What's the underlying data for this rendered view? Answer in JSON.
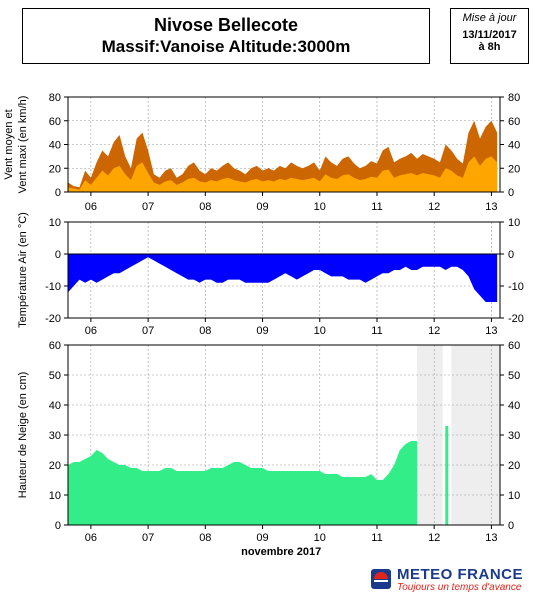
{
  "header": {
    "station": "Nivose Bellecote",
    "massif_line": "Massif:Vanoise Altitude:3000m",
    "update_label": "Mise à jour",
    "update_date": "13/11/2017",
    "update_time": "à 8h"
  },
  "footer": {
    "brand": "METEO FRANCE",
    "tagline": "Toujours un temps d'avance"
  },
  "chart_data": [
    {
      "type": "area",
      "name": "wind",
      "ylabel_lines": [
        "Vent moyen et",
        "Vent maxi (en km/h)"
      ],
      "ylim": [
        0,
        80
      ],
      "yticks": [
        0,
        20,
        40,
        60,
        80
      ],
      "xlim": [
        5.6,
        13.15
      ],
      "xticks": [
        6,
        7,
        8,
        9,
        10,
        11,
        12,
        13
      ],
      "xtick_labels": [
        "06",
        "07",
        "08",
        "09",
        "10",
        "11",
        "12",
        "13"
      ],
      "grid": true,
      "colors": {
        "max": "#cc6600",
        "mean": "#ffa500"
      },
      "x": [
        5.6,
        5.7,
        5.8,
        5.9,
        6.0,
        6.1,
        6.2,
        6.3,
        6.4,
        6.5,
        6.6,
        6.7,
        6.8,
        6.9,
        7.0,
        7.1,
        7.2,
        7.3,
        7.4,
        7.5,
        7.6,
        7.7,
        7.8,
        7.9,
        8.0,
        8.1,
        8.2,
        8.3,
        8.4,
        8.5,
        8.6,
        8.7,
        8.8,
        8.9,
        9.0,
        9.1,
        9.2,
        9.3,
        9.4,
        9.5,
        9.6,
        9.7,
        9.8,
        9.9,
        10.0,
        10.1,
        10.2,
        10.3,
        10.4,
        10.5,
        10.6,
        10.7,
        10.8,
        10.9,
        11.0,
        11.1,
        11.2,
        11.3,
        11.4,
        11.5,
        11.6,
        11.7,
        11.8,
        11.9,
        12.0,
        12.1,
        12.2,
        12.3,
        12.4,
        12.5,
        12.6,
        12.7,
        12.8,
        12.9,
        13.0,
        13.1
      ],
      "series": [
        {
          "name": "max",
          "values": [
            8,
            5,
            4,
            18,
            12,
            25,
            35,
            30,
            42,
            48,
            30,
            20,
            45,
            50,
            35,
            15,
            12,
            18,
            20,
            12,
            15,
            22,
            25,
            18,
            15,
            20,
            18,
            22,
            25,
            20,
            18,
            15,
            20,
            22,
            18,
            20,
            18,
            22,
            20,
            25,
            22,
            20,
            22,
            25,
            18,
            30,
            25,
            22,
            28,
            30,
            24,
            20,
            22,
            26,
            24,
            35,
            38,
            25,
            28,
            30,
            33,
            28,
            32,
            30,
            28,
            25,
            40,
            35,
            28,
            24,
            50,
            60,
            45,
            55,
            60,
            50
          ]
        },
        {
          "name": "mean",
          "values": [
            4,
            3,
            2,
            10,
            6,
            12,
            18,
            14,
            20,
            22,
            15,
            10,
            22,
            25,
            16,
            8,
            6,
            9,
            10,
            6,
            8,
            11,
            12,
            9,
            8,
            10,
            9,
            11,
            12,
            10,
            9,
            8,
            10,
            11,
            9,
            10,
            9,
            11,
            10,
            12,
            11,
            10,
            11,
            12,
            9,
            15,
            12,
            11,
            14,
            15,
            12,
            10,
            11,
            13,
            12,
            18,
            19,
            12,
            14,
            15,
            16,
            14,
            16,
            15,
            14,
            12,
            20,
            18,
            14,
            12,
            25,
            30,
            22,
            28,
            30,
            25
          ]
        }
      ]
    },
    {
      "type": "area",
      "name": "temperature",
      "ylabel": "Température Air (en °C)",
      "ylim": [
        -20,
        10
      ],
      "yticks": [
        -20,
        -10,
        0,
        10
      ],
      "xlim": [
        5.6,
        13.15
      ],
      "xticks": [
        6,
        7,
        8,
        9,
        10,
        11,
        12,
        13
      ],
      "xtick_labels": [
        "06",
        "07",
        "08",
        "09",
        "10",
        "11",
        "12",
        "13"
      ],
      "grid": true,
      "color": "#0000ff",
      "x": [
        5.6,
        5.7,
        5.8,
        5.9,
        6.0,
        6.1,
        6.2,
        6.3,
        6.4,
        6.5,
        6.6,
        6.7,
        6.8,
        6.9,
        7.0,
        7.1,
        7.2,
        7.3,
        7.4,
        7.5,
        7.6,
        7.7,
        7.8,
        7.9,
        8.0,
        8.1,
        8.2,
        8.3,
        8.4,
        8.5,
        8.6,
        8.7,
        8.8,
        8.9,
        9.0,
        9.1,
        9.2,
        9.3,
        9.4,
        9.5,
        9.6,
        9.7,
        9.8,
        9.9,
        10.0,
        10.1,
        10.2,
        10.3,
        10.4,
        10.5,
        10.6,
        10.7,
        10.8,
        10.9,
        11.0,
        11.1,
        11.2,
        11.3,
        11.4,
        11.5,
        11.6,
        11.7,
        11.8,
        11.9,
        12.0,
        12.1,
        12.2,
        12.3,
        12.4,
        12.5,
        12.6,
        12.7,
        12.8,
        12.9,
        13.0,
        13.1
      ],
      "values": [
        -12,
        -10,
        -8,
        -9,
        -8,
        -9,
        -8,
        -7,
        -6,
        -6,
        -5,
        -4,
        -3,
        -2,
        -1,
        -2,
        -3,
        -4,
        -5,
        -6,
        -7,
        -8,
        -8,
        -9,
        -8,
        -8,
        -9,
        -9,
        -8,
        -8,
        -8,
        -9,
        -9,
        -9,
        -9,
        -9,
        -8,
        -7,
        -6,
        -7,
        -8,
        -7,
        -6,
        -5,
        -5,
        -6,
        -7,
        -7,
        -7,
        -8,
        -8,
        -8,
        -9,
        -8,
        -7,
        -6,
        -6,
        -5,
        -5,
        -4,
        -5,
        -5,
        -4,
        -4,
        -4,
        -4,
        -5,
        -4,
        -4,
        -5,
        -7,
        -11,
        -13,
        -15,
        -15,
        -15
      ]
    },
    {
      "type": "area",
      "name": "snow",
      "ylabel": "Hauteur de Neige (en cm)",
      "xlabel": "novembre 2017",
      "ylim": [
        0,
        60
      ],
      "yticks": [
        0,
        10,
        20,
        30,
        40,
        50,
        60
      ],
      "xlim": [
        5.6,
        13.15
      ],
      "xticks": [
        6,
        7,
        8,
        9,
        10,
        11,
        12,
        13
      ],
      "xtick_labels": [
        "06",
        "07",
        "08",
        "09",
        "10",
        "11",
        "12",
        "13"
      ],
      "grid": true,
      "color": "#33ee88",
      "missing_spans": [
        [
          11.7,
          12.15
        ],
        [
          12.3,
          13.15
        ]
      ],
      "x": [
        5.6,
        5.7,
        5.8,
        5.9,
        6.0,
        6.1,
        6.2,
        6.3,
        6.4,
        6.5,
        6.6,
        6.7,
        6.8,
        6.9,
        7.0,
        7.1,
        7.2,
        7.3,
        7.4,
        7.5,
        7.6,
        7.7,
        7.8,
        7.9,
        8.0,
        8.1,
        8.2,
        8.3,
        8.4,
        8.5,
        8.6,
        8.7,
        8.8,
        8.9,
        9.0,
        9.1,
        9.2,
        9.3,
        9.4,
        9.5,
        9.6,
        9.7,
        9.8,
        9.9,
        10.0,
        10.1,
        10.2,
        10.3,
        10.4,
        10.5,
        10.6,
        10.7,
        10.8,
        10.9,
        11.0,
        11.1,
        11.2,
        11.3,
        11.4,
        11.5,
        11.6,
        11.7
      ],
      "values": [
        20,
        21,
        21,
        22,
        23,
        25,
        24,
        22,
        21,
        20,
        20,
        19,
        19,
        18,
        18,
        18,
        18,
        19,
        19,
        18,
        18,
        18,
        18,
        18,
        18,
        19,
        19,
        19,
        20,
        21,
        21,
        20,
        19,
        19,
        19,
        18,
        18,
        18,
        18,
        18,
        18,
        18,
        18,
        18,
        18,
        17,
        17,
        17,
        16,
        16,
        16,
        16,
        16,
        17,
        15,
        15,
        17,
        20,
        25,
        27,
        28,
        28
      ],
      "extra_bar": {
        "x": 12.22,
        "value": 33
      }
    }
  ]
}
